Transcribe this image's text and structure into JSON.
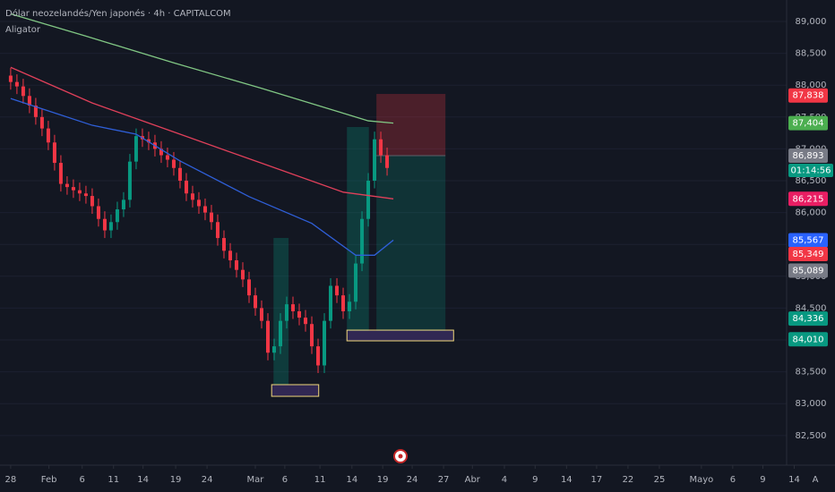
{
  "chart_data": {
    "type": "candlestick",
    "title": "Dólar neozelandés/Yen japonés · 4h · CAPITALCOM",
    "indicator": "Aligator",
    "up_color": "#089981",
    "down_color": "#f23645",
    "xlim": [
      -1.7,
      125.4
    ],
    "xticks": [
      {
        "value": 0,
        "label": "28"
      },
      {
        "value": 6.1,
        "label": "Feb"
      },
      {
        "value": 11.4,
        "label": "6"
      },
      {
        "value": 16.4,
        "label": "11"
      },
      {
        "value": 21.1,
        "label": "14"
      },
      {
        "value": 26.3,
        "label": "19"
      },
      {
        "value": 31.3,
        "label": "24"
      },
      {
        "value": 39,
        "label": "Mar"
      },
      {
        "value": 43.7,
        "label": "6"
      },
      {
        "value": 49.3,
        "label": "11"
      },
      {
        "value": 54.4,
        "label": "14"
      },
      {
        "value": 59.3,
        "label": "19"
      },
      {
        "value": 64,
        "label": "24"
      },
      {
        "value": 69,
        "label": "27"
      },
      {
        "value": 73.6,
        "label": "Abr"
      },
      {
        "value": 78.7,
        "label": "4"
      },
      {
        "value": 83.6,
        "label": "9"
      },
      {
        "value": 88.6,
        "label": "14"
      },
      {
        "value": 93.4,
        "label": "17"
      },
      {
        "value": 98.4,
        "label": "22"
      },
      {
        "value": 103.4,
        "label": "25"
      },
      {
        "value": 110.1,
        "label": "Mayo"
      },
      {
        "value": 115.1,
        "label": "6"
      },
      {
        "value": 119.9,
        "label": "9"
      },
      {
        "value": 124.9,
        "label": "14"
      }
    ],
    "ylim": [
      82034,
      89337
    ],
    "yticks": [
      {
        "value": 89000,
        "label": "89,000"
      },
      {
        "value": 88500,
        "label": "88,500"
      },
      {
        "value": 88000,
        "label": "88,000"
      },
      {
        "value": 87500,
        "label": "87,500"
      },
      {
        "value": 87000,
        "label": "87,000"
      },
      {
        "value": 86500,
        "label": "86,500"
      },
      {
        "value": 86000,
        "label": "86,000"
      },
      {
        "value": 85500,
        "label": "85,500"
      },
      {
        "value": 85000,
        "label": "85,000"
      },
      {
        "value": 84500,
        "label": "84,500"
      },
      {
        "value": 84000,
        "label": "84,000"
      },
      {
        "value": 83500,
        "label": "83,500"
      },
      {
        "value": 83000,
        "label": "83,000"
      },
      {
        "value": 82500,
        "label": "82,500"
      }
    ],
    "x": [
      0,
      1,
      2,
      3,
      4,
      5,
      6,
      7,
      8,
      9,
      10,
      11,
      12,
      13,
      14,
      15,
      16,
      17,
      18,
      19,
      20,
      21,
      22,
      23,
      24,
      25,
      26,
      27,
      28,
      29,
      30,
      31,
      32,
      33,
      34,
      35,
      36,
      37,
      38,
      39,
      40,
      41,
      42,
      43,
      44,
      45,
      46,
      47,
      48,
      49,
      50,
      51,
      52,
      53,
      54,
      55,
      56,
      57,
      58,
      59,
      60
    ],
    "candles": [
      [
        88150,
        88270,
        87930,
        88050
      ],
      [
        88050,
        88170,
        87860,
        87980
      ],
      [
        87980,
        88100,
        87710,
        87830
      ],
      [
        87830,
        87950,
        87560,
        87680
      ],
      [
        87680,
        87800,
        87380,
        87500
      ],
      [
        87500,
        87620,
        87200,
        87320
      ],
      [
        87320,
        87440,
        86980,
        87100
      ],
      [
        87100,
        87220,
        86660,
        86780
      ],
      [
        86780,
        86900,
        86330,
        86450
      ],
      [
        86450,
        86570,
        86280,
        86400
      ],
      [
        86400,
        86520,
        86230,
        86350
      ],
      [
        86350,
        86470,
        86180,
        86300
      ],
      [
        86300,
        86420,
        86140,
        86260
      ],
      [
        86260,
        86380,
        85980,
        86100
      ],
      [
        86100,
        86220,
        85780,
        85900
      ],
      [
        85900,
        86020,
        85600,
        85720
      ],
      [
        85720,
        85970,
        85600,
        85850
      ],
      [
        85850,
        86170,
        85730,
        86050
      ],
      [
        86050,
        86320,
        85930,
        86200
      ],
      [
        86200,
        86920,
        86080,
        86800
      ],
      [
        86800,
        87320,
        86680,
        87200
      ],
      [
        87200,
        87320,
        87030,
        87150
      ],
      [
        87150,
        87270,
        86980,
        87100
      ],
      [
        87100,
        87220,
        86880,
        87000
      ],
      [
        87000,
        87120,
        86780,
        86900
      ],
      [
        86900,
        87020,
        86710,
        86830
      ],
      [
        86830,
        86950,
        86580,
        86700
      ],
      [
        86700,
        86820,
        86380,
        86500
      ],
      [
        86500,
        86620,
        86180,
        86300
      ],
      [
        86300,
        86420,
        86080,
        86200
      ],
      [
        86200,
        86320,
        85980,
        86100
      ],
      [
        86100,
        86220,
        85880,
        86000
      ],
      [
        86000,
        86120,
        85730,
        85850
      ],
      [
        85850,
        85970,
        85480,
        85600
      ],
      [
        85600,
        85720,
        85280,
        85400
      ],
      [
        85400,
        85520,
        85130,
        85250
      ],
      [
        85250,
        85370,
        84980,
        85100
      ],
      [
        85100,
        85220,
        84830,
        84950
      ],
      [
        84950,
        85070,
        84580,
        84700
      ],
      [
        84700,
        84820,
        84380,
        84500
      ],
      [
        84500,
        84620,
        84180,
        84300
      ],
      [
        84300,
        84420,
        83680,
        83800
      ],
      [
        83800,
        84020,
        83680,
        83900
      ],
      [
        83900,
        84420,
        83780,
        84300
      ],
      [
        84300,
        84680,
        84180,
        84560
      ],
      [
        84560,
        84680,
        84330,
        84450
      ],
      [
        84450,
        84570,
        84230,
        84350
      ],
      [
        84350,
        84470,
        84130,
        84250
      ],
      [
        84250,
        84370,
        83780,
        83900
      ],
      [
        83900,
        84020,
        83480,
        83600
      ],
      [
        83600,
        84420,
        83480,
        84300
      ],
      [
        84300,
        84970,
        84180,
        84850
      ],
      [
        84850,
        84970,
        84580,
        84700
      ],
      [
        84700,
        84820,
        84330,
        84450
      ],
      [
        84450,
        84720,
        84330,
        84600
      ],
      [
        84600,
        85320,
        84480,
        85200
      ],
      [
        85200,
        86020,
        85080,
        85900
      ],
      [
        85900,
        86620,
        85780,
        86500
      ],
      [
        86500,
        87270,
        86380,
        87150
      ],
      [
        87150,
        87270,
        86780,
        86900
      ],
      [
        86900,
        87020,
        86580,
        86700
      ]
    ],
    "lines": [
      {
        "color": "#81c784",
        "x": [
          0,
          12,
          26,
          40,
          52,
          57,
          61
        ],
        "values": [
          89120,
          88770,
          88350,
          87950,
          87590,
          87440,
          87404
        ]
      },
      {
        "color": "#e0405a",
        "x": [
          0,
          13,
          27,
          41,
          53,
          61
        ],
        "values": [
          88280,
          87720,
          87230,
          86740,
          86320,
          86215
        ]
      },
      {
        "color": "#2f5fd8",
        "x": [
          0,
          13,
          20,
          27,
          38,
          48,
          55,
          58,
          61
        ],
        "values": [
          87790,
          87370,
          87230,
          86810,
          86250,
          85830,
          85330,
          85330,
          85567
        ]
      }
    ],
    "zones": [
      {
        "color": "#089981",
        "x": [
          41.9,
          44.3
        ],
        "price": [
          83298,
          85601
        ]
      },
      {
        "color": "#089981",
        "x": [
          53.6,
          57.1
        ],
        "price": [
          84140,
          87343
        ]
      }
    ],
    "boxes": [
      {
        "color": "#f0d77a",
        "x": [
          41.6,
          49.1
        ],
        "price": [
          83115,
          83298
        ]
      },
      {
        "color": "#f0d77a",
        "x": [
          53.6,
          70.6
        ],
        "price": [
          83986,
          84154
        ]
      }
    ],
    "position": {
      "x": [
        58.3,
        69.3
      ],
      "stop": 87862,
      "entry": 86893,
      "target": 84140
    },
    "price_tags": [
      {
        "value": 87838,
        "label": "87,838",
        "color": "#f23645"
      },
      {
        "value": 87404,
        "label": "87,404",
        "color": "#4caf50"
      },
      {
        "value": 86893,
        "label": "86,893",
        "color": "#787b86"
      },
      {
        "value": 86215,
        "label": "86,215",
        "color": "#e91e63"
      },
      {
        "value": 85567,
        "label": "85,567",
        "color": "#2962ff"
      },
      {
        "value": 85349,
        "label": "85,349",
        "color": "#f23645"
      },
      {
        "value": 85089,
        "label": "85,089",
        "color": "#787b86"
      },
      {
        "value": 84336,
        "label": "84,336",
        "color": "#089981"
      },
      {
        "value": 84010,
        "label": "84,010",
        "color": "#089981"
      }
    ],
    "countdown": "01:14:56",
    "auto_button": "A"
  }
}
